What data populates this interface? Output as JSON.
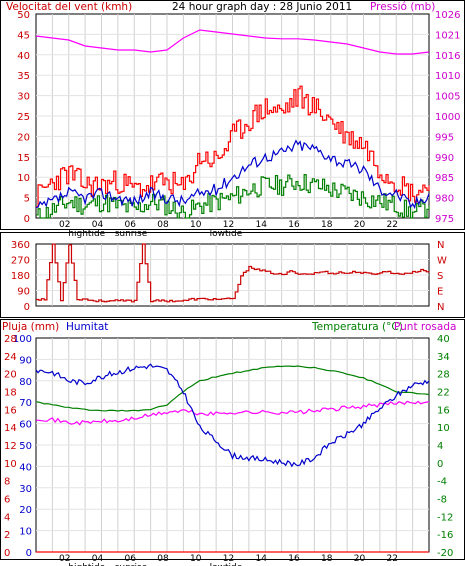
{
  "titles": {
    "wind": "Velocitat del vent (kmh)",
    "main": "24 hour graph day : 28 Junio 2011",
    "pressure": "Pressió (mb)",
    "rain": "Pluja (mm)",
    "humidity": "Humitat",
    "temperature": "Temperatura (°C)",
    "dew": "Punt rosada"
  },
  "colors": {
    "wind_avg": "#0000cc",
    "wind_gust": "#ff0000",
    "wind_min": "#008000",
    "pressure": "#ff00ff",
    "direction": "#cc0000",
    "humidity": "#0000cc",
    "temperature": "#008000",
    "dew": "#ff00ff",
    "rain": "#ff0000"
  },
  "x_ticks": [
    "02",
    "04",
    "06",
    "08",
    "10",
    "12",
    "14",
    "16",
    "18",
    "20",
    "22",
    ""
  ],
  "x_events": [
    "hightide",
    "sunrise",
    "lowtide"
  ],
  "chart_data": [
    {
      "type": "line",
      "axis_left": {
        "label": "Velocitat del vent (kmh)",
        "ticks": [
          0,
          5,
          10,
          15,
          20,
          25,
          30,
          35,
          40,
          45,
          50
        ],
        "ylim": [
          0,
          50
        ]
      },
      "axis_right": {
        "label": "Pressió (mb)",
        "ticks": [
          975,
          980,
          985,
          990,
          995,
          1000,
          1005,
          1010,
          1016,
          1021,
          1026
        ],
        "ylim": [
          975,
          1026
        ]
      },
      "x": [
        0,
        1,
        2,
        3,
        4,
        5,
        6,
        7,
        8,
        9,
        10,
        11,
        12,
        13,
        14,
        15,
        16,
        17,
        18,
        19,
        20,
        21,
        22,
        23,
        24
      ],
      "series": [
        {
          "name": "gust",
          "values": [
            5,
            9,
            11,
            8,
            8,
            9,
            7,
            8,
            9,
            7,
            15,
            14,
            20,
            24,
            27,
            26,
            30,
            27,
            24,
            20,
            18,
            12,
            9,
            6,
            8
          ]
        },
        {
          "name": "average",
          "values": [
            2,
            4,
            6,
            5,
            6,
            5,
            4,
            6,
            5,
            4,
            6,
            7,
            10,
            13,
            15,
            16,
            18,
            17,
            15,
            13,
            12,
            7,
            6,
            3,
            6
          ]
        },
        {
          "name": "minimum",
          "values": [
            0,
            2,
            4,
            3,
            4,
            3,
            2,
            4,
            3,
            1,
            3,
            4,
            5,
            7,
            8,
            8,
            9,
            8,
            7,
            6,
            5,
            4,
            3,
            1,
            3
          ]
        },
        {
          "name": "pressure",
          "values": [
            1020.5,
            1020,
            1019.5,
            1018,
            1017.5,
            1017,
            1017,
            1016.5,
            1017,
            1020,
            1022,
            1021.5,
            1021,
            1020.5,
            1020,
            1019.8,
            1019.8,
            1019.5,
            1019,
            1018.5,
            1017.5,
            1016.5,
            1016,
            1016,
            1016.5
          ]
        }
      ]
    },
    {
      "type": "line",
      "axis_left": {
        "ticks": [
          0,
          90,
          180,
          270,
          360
        ],
        "ylim": [
          0,
          360
        ]
      },
      "axis_right": {
        "ticks": [
          "N",
          "E",
          "S",
          "W",
          "N"
        ]
      },
      "x": [
        0,
        0.5,
        1,
        1.5,
        2,
        2.5,
        3,
        3.5,
        4,
        4.5,
        5,
        5.5,
        6,
        6.5,
        7,
        7.5,
        8,
        8.5,
        9,
        9.5,
        10,
        10.5,
        11,
        11.5,
        12,
        12.5,
        13,
        13.5,
        14,
        14.5,
        15,
        15.5,
        16,
        16.5,
        17,
        17.5,
        18,
        18.5,
        19,
        19.5,
        20,
        20.5,
        21,
        21.5,
        22,
        22.5,
        23,
        23.5,
        24
      ],
      "series": [
        {
          "name": "direction",
          "values": [
            40,
            40,
            360,
            30,
            360,
            40,
            40,
            30,
            30,
            30,
            30,
            30,
            30,
            360,
            30,
            30,
            30,
            30,
            30,
            40,
            40,
            40,
            40,
            40,
            40,
            170,
            230,
            210,
            200,
            190,
            180,
            200,
            190,
            185,
            190,
            200,
            190,
            195,
            190,
            200,
            190,
            185,
            195,
            200,
            185,
            190,
            195,
            210,
            200
          ]
        }
      ]
    },
    {
      "type": "line",
      "axis_left_rain": {
        "label": "Pluja (mm)",
        "ticks": [
          0,
          2,
          4,
          6,
          8,
          10,
          12,
          14,
          16,
          18,
          20,
          24,
          28
        ]
      },
      "axis_left_hum": {
        "label": "Humitat",
        "ticks": [
          0,
          10,
          20,
          30,
          40,
          50,
          60,
          70,
          80,
          90,
          100
        ],
        "ylim": [
          0,
          100
        ]
      },
      "axis_right": {
        "label": "Temperatura (°C)",
        "ticks": [
          -20,
          -16,
          -12,
          -8,
          -4,
          0,
          4,
          10,
          16,
          22,
          28,
          34,
          40
        ],
        "ylim": [
          -20,
          40
        ]
      },
      "x": [
        0,
        1,
        2,
        3,
        4,
        5,
        6,
        7,
        8,
        9,
        10,
        11,
        12,
        13,
        14,
        15,
        16,
        17,
        18,
        19,
        20,
        21,
        22,
        23,
        24
      ],
      "series": [
        {
          "name": "Humitat",
          "values": [
            85,
            84,
            80,
            79,
            82,
            84,
            86,
            87,
            85,
            75,
            58,
            52,
            45,
            44,
            43,
            42,
            41,
            44,
            51,
            55,
            60,
            67,
            73,
            78,
            80
          ]
        },
        {
          "name": "Temperatura (°C)",
          "values": [
            18.5,
            17.5,
            16.5,
            16,
            15.5,
            15.5,
            15.5,
            16,
            17.5,
            22,
            25.5,
            27,
            28.2,
            29,
            30,
            30.5,
            30.5,
            30,
            29,
            28,
            26.5,
            24.5,
            22,
            21.5,
            21
          ]
        },
        {
          "name": "Punt rosada",
          "values": [
            13,
            12.5,
            11.5,
            11.5,
            12,
            12,
            13,
            14,
            15,
            15.5,
            14.5,
            14.5,
            15,
            15,
            15,
            15,
            15,
            15.5,
            16,
            16.5,
            17,
            17.5,
            18,
            18.5,
            18.5
          ]
        },
        {
          "name": "Pluja (mm)",
          "values": [
            0,
            0,
            0,
            0,
            0,
            0,
            0,
            0,
            0,
            0,
            0,
            0,
            0,
            0,
            0,
            0,
            0,
            0,
            0,
            0,
            0,
            0,
            0,
            0,
            0
          ]
        }
      ]
    }
  ]
}
